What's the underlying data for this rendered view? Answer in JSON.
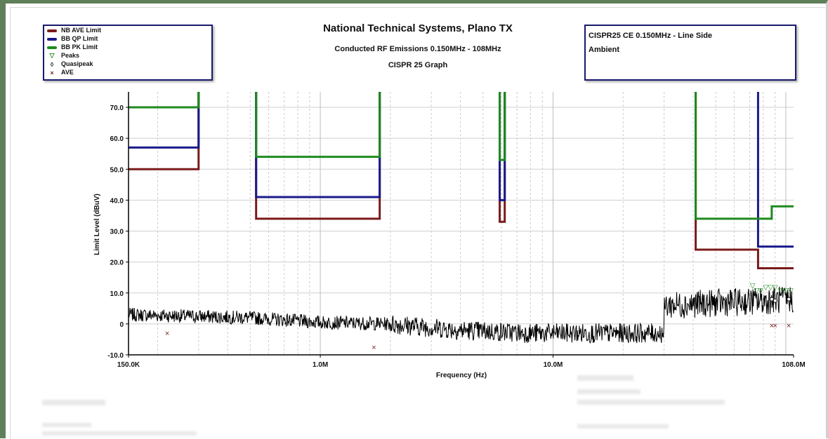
{
  "title": "National Technical Systems, Plano TX",
  "subtitle": "Conducted RF Emissions 0.150MHz - 108MHz",
  "subtitle2": "CISPR 25 Graph",
  "info": {
    "line1": "CISPR25 CE 0.150MHz - Line Side",
    "line2": "Ambient"
  },
  "legend": [
    {
      "label": "NB AVE Limit",
      "kind": "line",
      "color": "#7a1a1a"
    },
    {
      "label": "BB QP Limit",
      "kind": "line",
      "color": "#1a1a8c"
    },
    {
      "label": "BB PK Limit",
      "kind": "line",
      "color": "#1e8a1e"
    },
    {
      "label": "Peaks",
      "kind": "symbol",
      "symbol": "▽",
      "color": "#1e8a1e"
    },
    {
      "label": "Quasipeak",
      "kind": "symbol",
      "symbol": "◊",
      "color": "#111111"
    },
    {
      "label": "AVE",
      "kind": "symbol",
      "symbol": "×",
      "color": "#7a1a1a"
    }
  ],
  "chart_data": {
    "type": "line",
    "xlabel": "Frequency (Hz)",
    "ylabel": "Limit Level (dBuV)",
    "xscale": "log",
    "xlim": [
      0.15,
      108
    ],
    "ylim": [
      -10,
      75
    ],
    "grid": true,
    "legend_position": "top-left",
    "x_ticks": [
      {
        "value": 0.15,
        "label": "150.0K"
      },
      {
        "value": 1,
        "label": "1.0M"
      },
      {
        "value": 10,
        "label": "10.0M"
      },
      {
        "value": 108,
        "label": "108.0M"
      }
    ],
    "y_ticks": [
      {
        "value": 70,
        "label": "70.0"
      },
      {
        "value": 60,
        "label": "60.0"
      },
      {
        "value": 50,
        "label": "50.0"
      },
      {
        "value": 40,
        "label": "40.0"
      },
      {
        "value": 30,
        "label": "30.0"
      },
      {
        "value": 20,
        "label": "20.0"
      },
      {
        "value": 10,
        "label": "10.0"
      },
      {
        "value": 0,
        "label": "0"
      },
      {
        "value": -10,
        "label": "-10.0"
      }
    ],
    "colors": {
      "nb_ave": "#7a1a1a",
      "bb_qp": "#1a1a8c",
      "bb_pk": "#1e8a1e",
      "trace": "#000000"
    },
    "limit_bands": [
      {
        "f_start": 0.15,
        "f_end": 0.3,
        "nb_ave": 50,
        "bb_qp": 57,
        "bb_pk": 70
      },
      {
        "f_start": 0.53,
        "f_end": 1.8,
        "nb_ave": 34,
        "bb_qp": 41,
        "bb_pk": 54
      },
      {
        "f_start": 5.9,
        "f_end": 6.2,
        "nb_ave": 33,
        "bb_qp": 40,
        "bb_pk": 53
      }
    ],
    "high_limits": {
      "nb_ave": [
        [
          41,
          24
        ],
        [
          76,
          24
        ],
        [
          76,
          18
        ],
        [
          108,
          18
        ]
      ],
      "bb_qp": [
        [
          76,
          25
        ],
        [
          108,
          25
        ]
      ],
      "bb_pk": [
        [
          41,
          34
        ],
        [
          87,
          34
        ],
        [
          87,
          38
        ],
        [
          108,
          38
        ]
      ]
    },
    "trace_profile": [
      [
        0.15,
        3
      ],
      [
        0.5,
        2
      ],
      [
        1,
        0.5
      ],
      [
        2,
        0
      ],
      [
        4,
        -2
      ],
      [
        8,
        -3
      ],
      [
        15,
        -3
      ],
      [
        30,
        -3
      ],
      [
        30.1,
        6
      ],
      [
        60,
        7
      ],
      [
        108,
        8
      ]
    ],
    "peaks": [
      [
        72,
        12.5
      ],
      [
        75,
        11
      ],
      [
        78,
        11
      ],
      [
        82,
        12
      ],
      [
        86,
        12
      ],
      [
        90,
        12
      ],
      [
        95,
        11
      ],
      [
        100,
        11
      ],
      [
        105,
        11
      ]
    ],
    "quasipeak": [
      [
        87,
        8
      ],
      [
        90,
        7.5
      ],
      [
        103,
        8
      ]
    ],
    "ave": [
      [
        0.22,
        -3
      ],
      [
        1.7,
        -7.5
      ],
      [
        87,
        -0.5
      ],
      [
        90,
        -0.5
      ],
      [
        103,
        -0.5
      ]
    ]
  }
}
